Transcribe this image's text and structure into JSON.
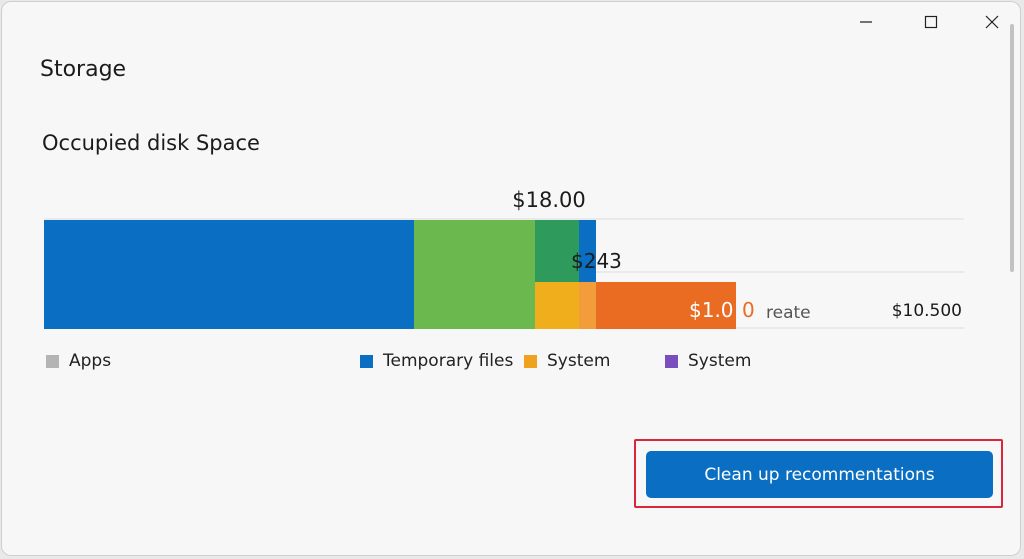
{
  "window": {
    "title": "Storage",
    "controls": [
      "minimize",
      "maximize",
      "close"
    ]
  },
  "section": {
    "title": "Occupied disk Space"
  },
  "chart_data": {
    "type": "bar",
    "orientation": "horizontal",
    "stacked": true,
    "labels": {
      "top": "$18.00",
      "mid": "$243",
      "inner": "$1.0",
      "inner_suffix": "0",
      "trail": "reate",
      "right": "$10.500"
    },
    "segments": [
      {
        "color": "#0a6fc2",
        "value": 370
      },
      {
        "color": "#6ab84e",
        "value": 121
      },
      {
        "color": "#2e9a5b",
        "value": 44
      },
      {
        "color": "#f0ae1c",
        "value": 44
      },
      {
        "color": "#0a6fc2",
        "value": 17
      },
      {
        "color": "#e96c22",
        "value": 140
      }
    ],
    "grid": true
  },
  "legend": {
    "items": [
      {
        "label": "Apps",
        "color": "#b4b4b4"
      },
      {
        "label": "Temporary files",
        "color": "#0a6fc2"
      },
      {
        "label": "System",
        "color": "#f0a21e"
      },
      {
        "label": "System",
        "color": "#7a4fbd"
      }
    ]
  },
  "actions": {
    "cleanup_label": "Clean up recommentations"
  },
  "colors": {
    "accent": "#0a6fc2",
    "highlight": "#d9263b"
  }
}
